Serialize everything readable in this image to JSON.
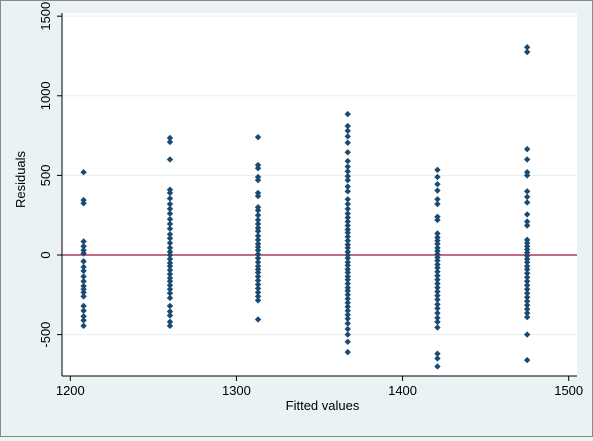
{
  "chart_data": {
    "type": "scatter",
    "title": "",
    "xlabel": "Fitted values",
    "ylabel": "Residuals",
    "xlim": [
      1195,
      1505
    ],
    "ylim": [
      -760,
      1520
    ],
    "xticks": [
      1200,
      1300,
      1400,
      1500
    ],
    "yticks": [
      -500,
      0,
      500,
      1000,
      1500
    ],
    "xtick_labels": [
      "1200",
      "1300",
      "1400",
      "1500"
    ],
    "ytick_labels": [
      "-500",
      "0",
      "500",
      "1000",
      "1500"
    ],
    "grid": "horizontal",
    "reference_line": {
      "y": 0,
      "color": "#a0103a"
    },
    "colors": {
      "marker": "#1a4a72",
      "plot_background": "#ffffff",
      "outer_background": "#eaf2f3",
      "grid": "#e6eef0"
    },
    "series": [
      {
        "points": [
          [
            1208,
            520
          ],
          [
            1208,
            345
          ],
          [
            1208,
            325
          ],
          [
            1208,
            85
          ],
          [
            1208,
            55
          ],
          [
            1208,
            30
          ],
          [
            1208,
            10
          ],
          [
            1208,
            -40
          ],
          [
            1208,
            -75
          ],
          [
            1208,
            -100
          ],
          [
            1208,
            -135
          ],
          [
            1208,
            -165
          ],
          [
            1208,
            -195
          ],
          [
            1208,
            -215
          ],
          [
            1208,
            -235
          ],
          [
            1208,
            -260
          ],
          [
            1208,
            -320
          ],
          [
            1208,
            -350
          ],
          [
            1208,
            -385
          ],
          [
            1208,
            -410
          ],
          [
            1208,
            -445
          ],
          [
            1260,
            735
          ],
          [
            1260,
            710
          ],
          [
            1260,
            600
          ],
          [
            1260,
            410
          ],
          [
            1260,
            390
          ],
          [
            1260,
            355
          ],
          [
            1260,
            320
          ],
          [
            1260,
            290
          ],
          [
            1260,
            260
          ],
          [
            1260,
            225
          ],
          [
            1260,
            195
          ],
          [
            1260,
            165
          ],
          [
            1260,
            130
          ],
          [
            1260,
            105
          ],
          [
            1260,
            75
          ],
          [
            1260,
            45
          ],
          [
            1260,
            20
          ],
          [
            1260,
            0
          ],
          [
            1260,
            -25
          ],
          [
            1260,
            -50
          ],
          [
            1260,
            -70
          ],
          [
            1260,
            -95
          ],
          [
            1260,
            -120
          ],
          [
            1260,
            -145
          ],
          [
            1260,
            -165
          ],
          [
            1260,
            -190
          ],
          [
            1260,
            -215
          ],
          [
            1260,
            -240
          ],
          [
            1260,
            -270
          ],
          [
            1260,
            -320
          ],
          [
            1260,
            -355
          ],
          [
            1260,
            -380
          ],
          [
            1260,
            -420
          ],
          [
            1260,
            -445
          ],
          [
            1313,
            740
          ],
          [
            1313,
            565
          ],
          [
            1313,
            545
          ],
          [
            1313,
            490
          ],
          [
            1313,
            470
          ],
          [
            1313,
            390
          ],
          [
            1313,
            370
          ],
          [
            1313,
            300
          ],
          [
            1313,
            280
          ],
          [
            1313,
            250
          ],
          [
            1313,
            220
          ],
          [
            1313,
            195
          ],
          [
            1313,
            170
          ],
          [
            1313,
            150
          ],
          [
            1313,
            120
          ],
          [
            1313,
            95
          ],
          [
            1313,
            70
          ],
          [
            1313,
            50
          ],
          [
            1313,
            30
          ],
          [
            1313,
            5
          ],
          [
            1313,
            -20
          ],
          [
            1313,
            -45
          ],
          [
            1313,
            -70
          ],
          [
            1313,
            -90
          ],
          [
            1313,
            -110
          ],
          [
            1313,
            -135
          ],
          [
            1313,
            -160
          ],
          [
            1313,
            -185
          ],
          [
            1313,
            -210
          ],
          [
            1313,
            -235
          ],
          [
            1313,
            -260
          ],
          [
            1313,
            -285
          ],
          [
            1313,
            -405
          ],
          [
            1367,
            885
          ],
          [
            1367,
            810
          ],
          [
            1367,
            780
          ],
          [
            1367,
            745
          ],
          [
            1367,
            705
          ],
          [
            1367,
            645
          ],
          [
            1367,
            590
          ],
          [
            1367,
            555
          ],
          [
            1367,
            525
          ],
          [
            1367,
            495
          ],
          [
            1367,
            470
          ],
          [
            1367,
            430
          ],
          [
            1367,
            400
          ],
          [
            1367,
            350
          ],
          [
            1367,
            320
          ],
          [
            1367,
            290
          ],
          [
            1367,
            260
          ],
          [
            1367,
            235
          ],
          [
            1367,
            210
          ],
          [
            1367,
            185
          ],
          [
            1367,
            160
          ],
          [
            1367,
            140
          ],
          [
            1367,
            115
          ],
          [
            1367,
            90
          ],
          [
            1367,
            65
          ],
          [
            1367,
            45
          ],
          [
            1367,
            20
          ],
          [
            1367,
            0
          ],
          [
            1367,
            -20
          ],
          [
            1367,
            -45
          ],
          [
            1367,
            -65
          ],
          [
            1367,
            -90
          ],
          [
            1367,
            -110
          ],
          [
            1367,
            -135
          ],
          [
            1367,
            -155
          ],
          [
            1367,
            -180
          ],
          [
            1367,
            -205
          ],
          [
            1367,
            -225
          ],
          [
            1367,
            -250
          ],
          [
            1367,
            -275
          ],
          [
            1367,
            -300
          ],
          [
            1367,
            -325
          ],
          [
            1367,
            -350
          ],
          [
            1367,
            -375
          ],
          [
            1367,
            -400
          ],
          [
            1367,
            -430
          ],
          [
            1367,
            -465
          ],
          [
            1367,
            -500
          ],
          [
            1367,
            -545
          ],
          [
            1367,
            -610
          ],
          [
            1421,
            535
          ],
          [
            1421,
            490
          ],
          [
            1421,
            445
          ],
          [
            1421,
            405
          ],
          [
            1421,
            350
          ],
          [
            1421,
            320
          ],
          [
            1421,
            240
          ],
          [
            1421,
            220
          ],
          [
            1421,
            135
          ],
          [
            1421,
            110
          ],
          [
            1421,
            90
          ],
          [
            1421,
            70
          ],
          [
            1421,
            45
          ],
          [
            1421,
            25
          ],
          [
            1421,
            5
          ],
          [
            1421,
            -15
          ],
          [
            1421,
            -35
          ],
          [
            1421,
            -60
          ],
          [
            1421,
            -80
          ],
          [
            1421,
            -105
          ],
          [
            1421,
            -130
          ],
          [
            1421,
            -155
          ],
          [
            1421,
            -180
          ],
          [
            1421,
            -205
          ],
          [
            1421,
            -230
          ],
          [
            1421,
            -255
          ],
          [
            1421,
            -280
          ],
          [
            1421,
            -310
          ],
          [
            1421,
            -335
          ],
          [
            1421,
            -365
          ],
          [
            1421,
            -395
          ],
          [
            1421,
            -420
          ],
          [
            1421,
            -455
          ],
          [
            1421,
            -620
          ],
          [
            1421,
            -650
          ],
          [
            1421,
            -700
          ],
          [
            1475,
            1305
          ],
          [
            1475,
            1275
          ],
          [
            1475,
            665
          ],
          [
            1475,
            600
          ],
          [
            1475,
            520
          ],
          [
            1475,
            500
          ],
          [
            1475,
            400
          ],
          [
            1475,
            365
          ],
          [
            1475,
            330
          ],
          [
            1475,
            255
          ],
          [
            1475,
            210
          ],
          [
            1475,
            185
          ],
          [
            1475,
            95
          ],
          [
            1475,
            75
          ],
          [
            1475,
            55
          ],
          [
            1475,
            35
          ],
          [
            1475,
            15
          ],
          [
            1475,
            -5
          ],
          [
            1475,
            -25
          ],
          [
            1475,
            -45
          ],
          [
            1475,
            -70
          ],
          [
            1475,
            -90
          ],
          [
            1475,
            -115
          ],
          [
            1475,
            -140
          ],
          [
            1475,
            -165
          ],
          [
            1475,
            -190
          ],
          [
            1475,
            -215
          ],
          [
            1475,
            -240
          ],
          [
            1475,
            -265
          ],
          [
            1475,
            -290
          ],
          [
            1475,
            -315
          ],
          [
            1475,
            -340
          ],
          [
            1475,
            -365
          ],
          [
            1475,
            -390
          ],
          [
            1475,
            -500
          ],
          [
            1475,
            -660
          ]
        ]
      }
    ]
  }
}
